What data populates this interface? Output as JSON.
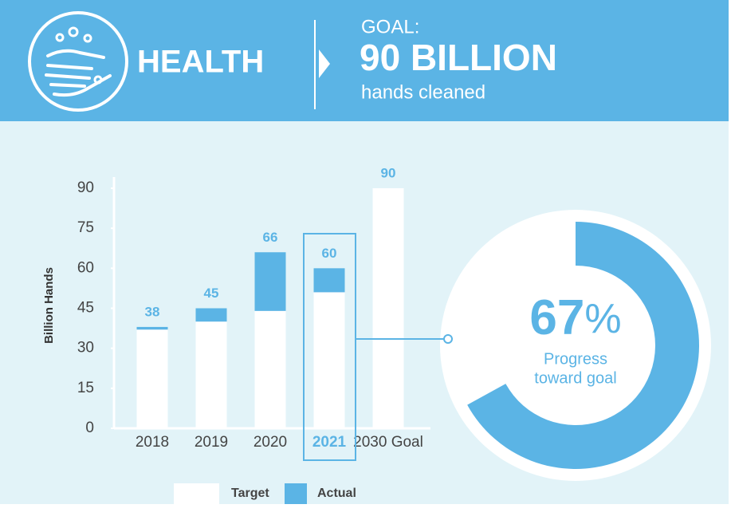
{
  "header": {
    "title": "HEALTH",
    "goal_label": "GOAL:",
    "goal_value": "90 BILLION",
    "goal_unit": "hands cleaned"
  },
  "chart_data": {
    "type": "bar",
    "mode": "overlay",
    "categories": [
      "2018",
      "2019",
      "2020",
      "2021",
      "2030 Goal"
    ],
    "series": [
      {
        "name": "Target",
        "color": "#ffffff",
        "values": [
          37,
          40,
          44,
          51,
          90
        ]
      },
      {
        "name": "Actual",
        "color": "#5bb4e5",
        "values": [
          38,
          45,
          66,
          60,
          null
        ]
      }
    ],
    "highlight": "2021",
    "y_label": "Billion Hands",
    "ylim": [
      0,
      90
    ],
    "yticks": [
      0,
      15,
      30,
      45,
      60,
      75,
      90
    ]
  },
  "progress": {
    "value": 67,
    "unit": "%",
    "label": [
      "Progress",
      "toward goal"
    ],
    "color": "#5bb4e5"
  }
}
